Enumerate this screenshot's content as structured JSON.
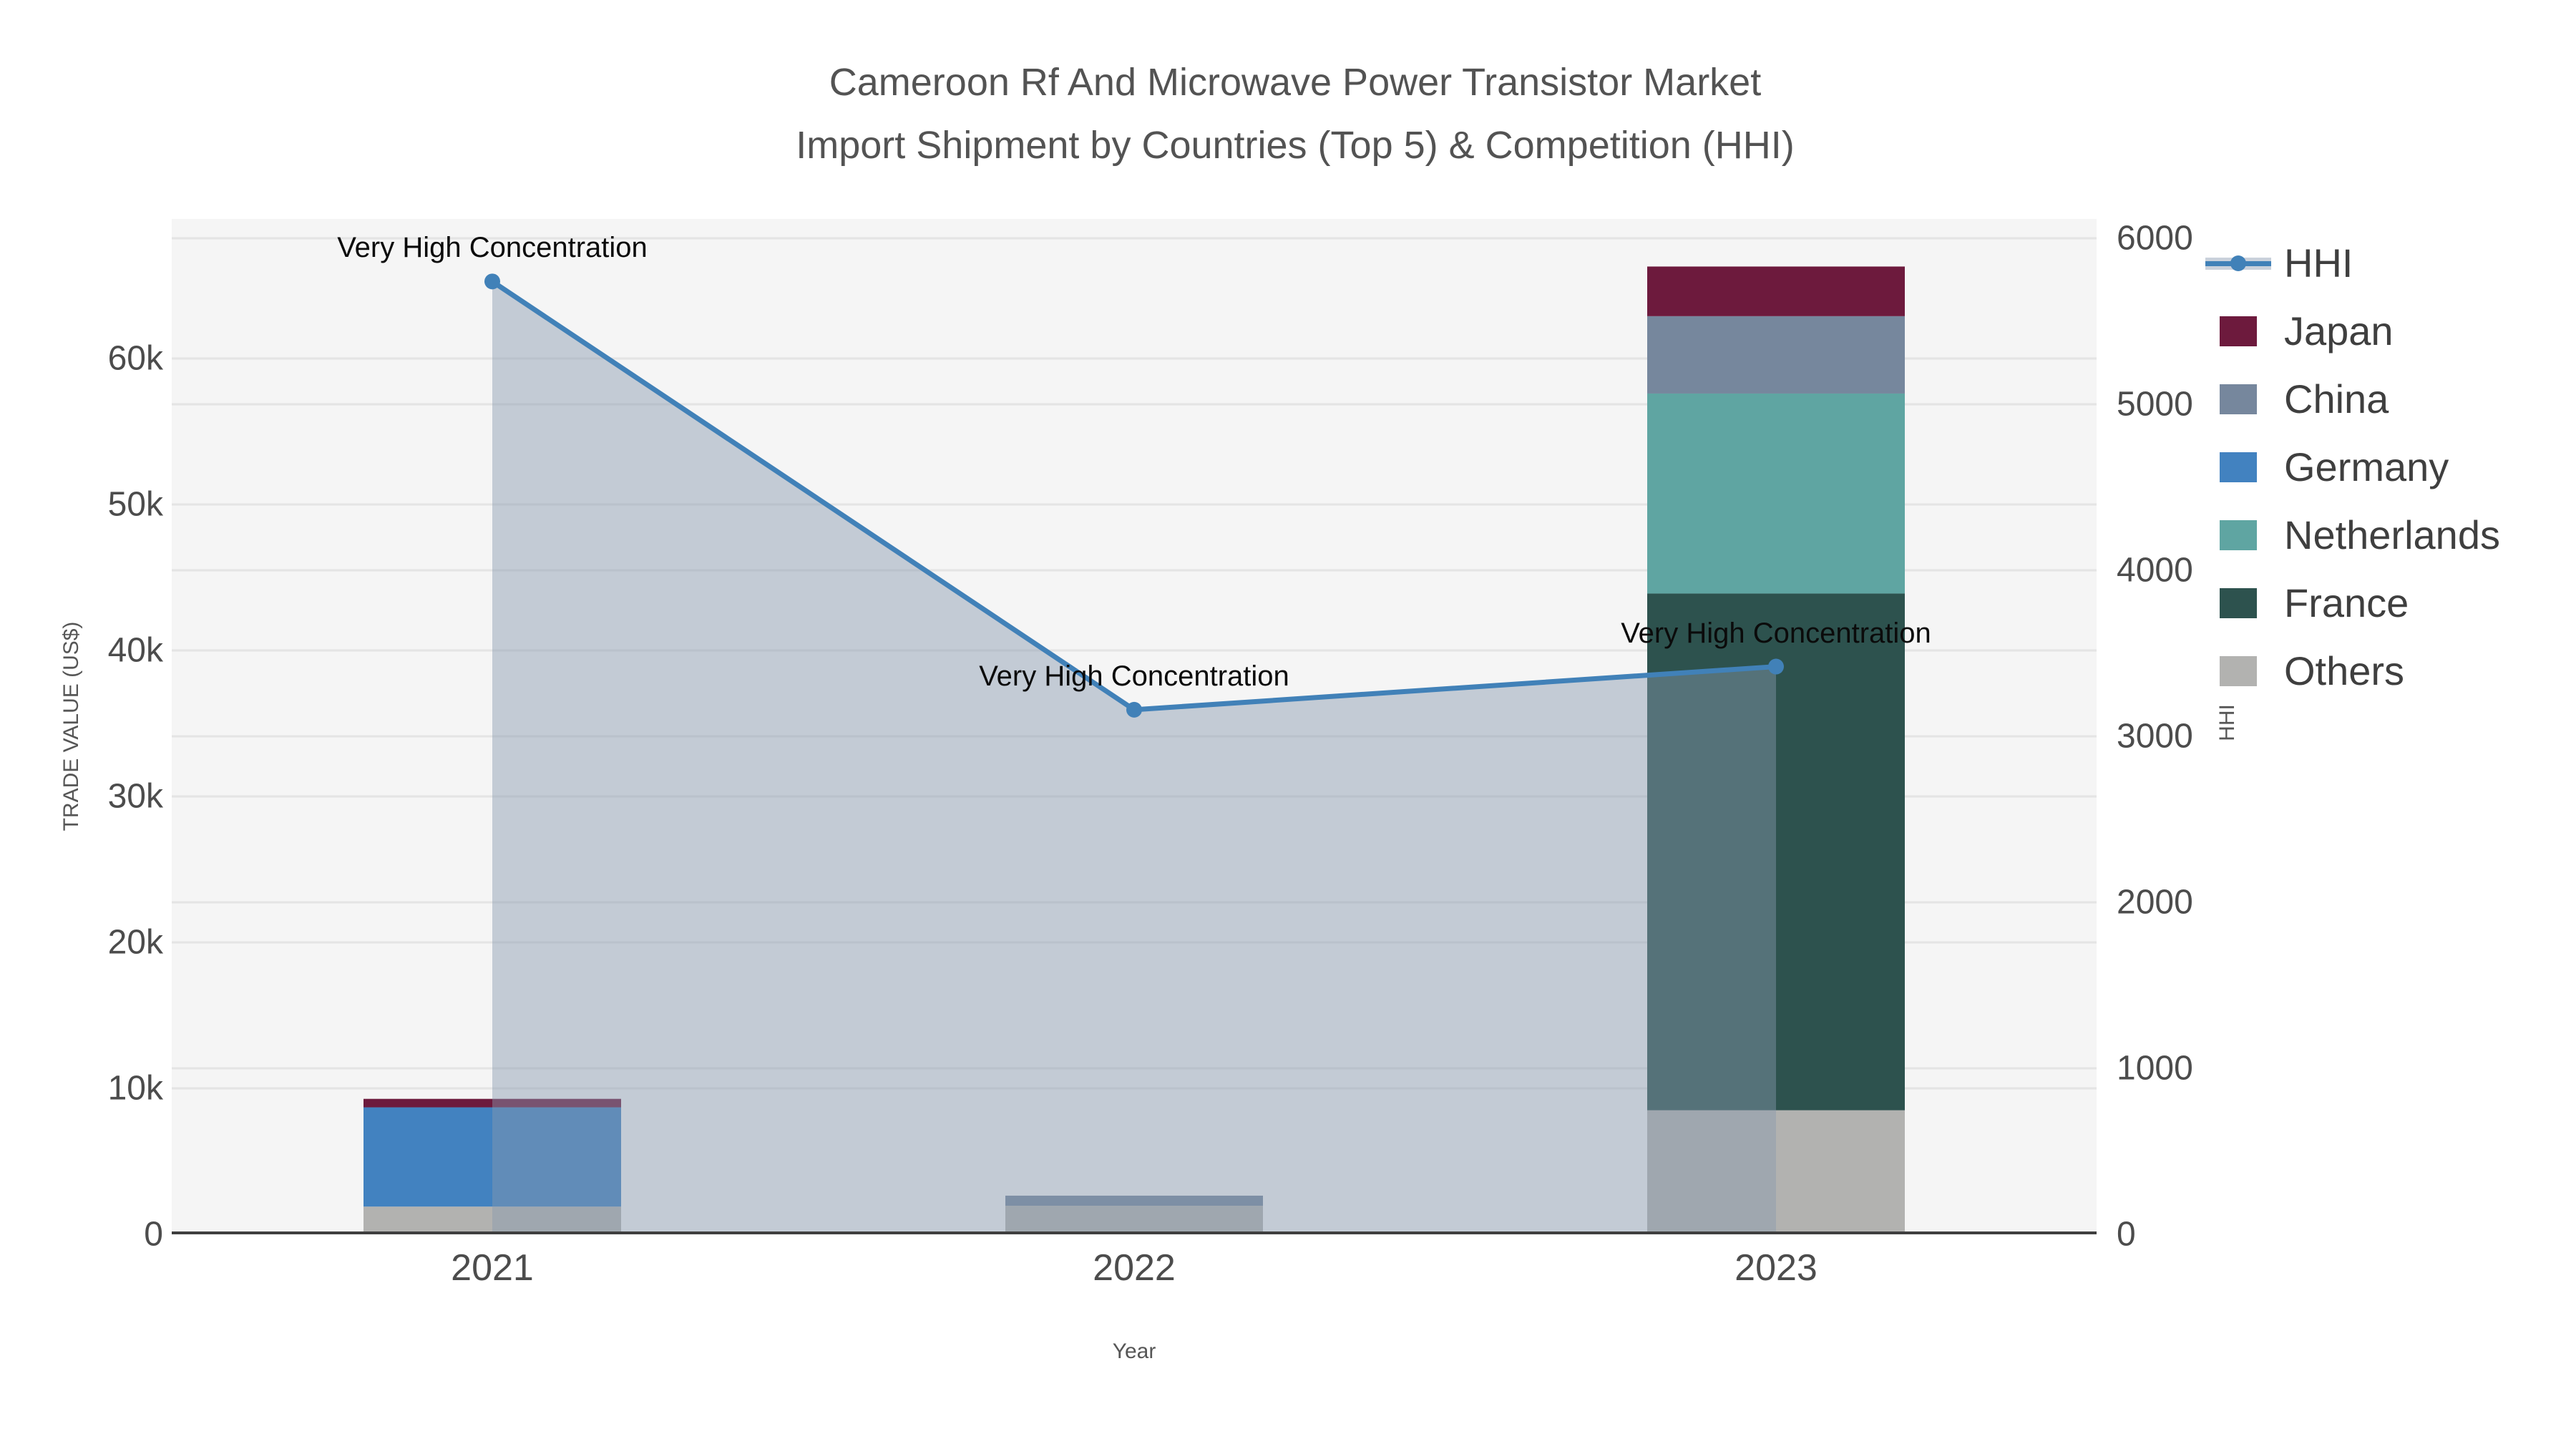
{
  "title": {
    "line1": "Cameroon Rf And Microwave Power Transistor Market",
    "line2": "Import Shipment by Countries (Top 5) & Competition (HHI)"
  },
  "axes": {
    "x": {
      "title": "Year",
      "ticks": [
        "2021",
        "2022",
        "2023"
      ]
    },
    "y_left": {
      "title": "TRADE VALUE (US$)",
      "ticks": [
        "0",
        "10k",
        "20k",
        "30k",
        "40k",
        "50k",
        "60k"
      ]
    },
    "y_right": {
      "title": "HHI",
      "ticks": [
        "0",
        "1000",
        "2000",
        "3000",
        "4000",
        "5000",
        "6000"
      ]
    }
  },
  "legend": [
    {
      "label": "HHI",
      "color": "#4181b8",
      "type": "line"
    },
    {
      "label": "Japan",
      "color": "#6d1a3d",
      "type": "swatch"
    },
    {
      "label": "China",
      "color": "#76879d",
      "type": "swatch"
    },
    {
      "label": "Germany",
      "color": "#4282c0",
      "type": "swatch"
    },
    {
      "label": "Netherlands",
      "color": "#5fa5a2",
      "type": "swatch"
    },
    {
      "label": "France",
      "color": "#2d524e",
      "type": "swatch"
    },
    {
      "label": "Others",
      "color": "#b2b2b0",
      "type": "swatch"
    }
  ],
  "annotations": [
    {
      "text": "Very High Concentration",
      "year": "2021"
    },
    {
      "text": "Very High Concentration",
      "year": "2022"
    },
    {
      "text": "Very High Concentration",
      "year": "2023"
    }
  ],
  "chart_data": {
    "type": "combo: stacked bar + line+area",
    "x": [
      "2021",
      "2022",
      "2023"
    ],
    "bar_axis": "left",
    "bar_series": [
      {
        "name": "Japan",
        "color": "#6d1a3d",
        "values": [
          580,
          0,
          3400
        ]
      },
      {
        "name": "China",
        "color": "#76879d",
        "values": [
          0,
          690,
          5300
        ]
      },
      {
        "name": "Germany",
        "color": "#4282c0",
        "values": [
          6800,
          0,
          0
        ]
      },
      {
        "name": "Netherlands",
        "color": "#5fa5a2",
        "values": [
          0,
          0,
          13700
        ]
      },
      {
        "name": "France",
        "color": "#2d524e",
        "values": [
          0,
          0,
          35400
        ]
      },
      {
        "name": "Others",
        "color": "#b2b2b0",
        "values": [
          1900,
          1960,
          8500
        ]
      }
    ],
    "stack_order_bottom_to_top": [
      "Others",
      "France",
      "Netherlands",
      "Germany",
      "China",
      "Japan"
    ],
    "line_series": {
      "name": "HHI",
      "axis": "right",
      "color": "#4181b8",
      "area_fill": "rgba(136,152,175,0.45)",
      "values": [
        5740,
        3160,
        3420
      ]
    },
    "xlabel": "Year",
    "ylabel_left": "TRADE VALUE (US$)",
    "ylabel_right": "HHI",
    "ylim_left": [
      0,
      69600
    ],
    "ylim_right": [
      0,
      6116
    ],
    "grid": true,
    "legend_position": "right",
    "plot_bg": "#f5f5f5",
    "grid_color": "#e4e4e4"
  }
}
